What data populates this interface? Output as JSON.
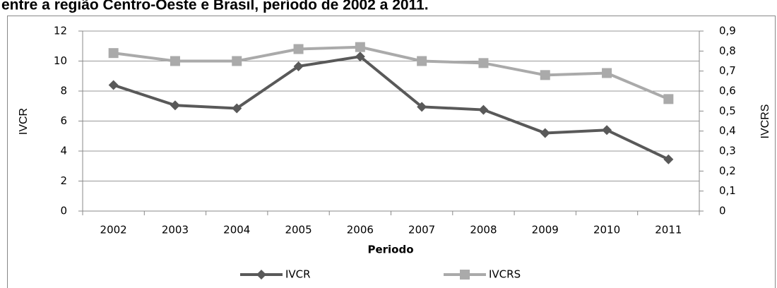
{
  "chart_data": {
    "type": "line",
    "title": "entre a região Centro-Oeste e Brasil, período de 2002 a 2011.",
    "x_label": "Periodo",
    "y_label": "IVCR",
    "y2_label": "IVCRS",
    "categories": [
      "2002",
      "2003",
      "2004",
      "2005",
      "2006",
      "2007",
      "2008",
      "2009",
      "2010",
      "2011"
    ],
    "series": [
      {
        "name": "IVCR",
        "color": "#595959",
        "marker": "diamond",
        "values": [
          8.4,
          7.05,
          6.85,
          9.65,
          10.3,
          6.95,
          6.75,
          5.2,
          5.4,
          3.45
        ]
      },
      {
        "name": "IVCRS",
        "color": "#aaaaaa",
        "marker": "square",
        "axis": "y2",
        "values": [
          0.79,
          0.75,
          0.75,
          0.81,
          0.82,
          0.75,
          0.74,
          0.68,
          0.69,
          0.56
        ]
      }
    ],
    "ylim": [
      0,
      12
    ],
    "yticks": [
      0,
      2,
      4,
      6,
      8,
      10,
      12
    ],
    "y2lim": [
      0,
      0.9
    ],
    "y2ticks": [
      0,
      {
        "value": 0.1,
        "label": "0,1"
      },
      {
        "value": 0.2,
        "label": "0,2"
      },
      {
        "value": 0.3,
        "label": "0,3"
      },
      {
        "value": 0.4,
        "label": "0,4"
      },
      {
        "value": 0.5,
        "label": "0,5"
      },
      {
        "value": 0.6,
        "label": "0,6"
      },
      {
        "value": 0.7,
        "label": "0,7"
      },
      {
        "value": 0.8,
        "label": "0,8"
      },
      {
        "value": 0.9,
        "label": "0,9"
      }
    ],
    "grid": true,
    "legend": "bottom"
  }
}
